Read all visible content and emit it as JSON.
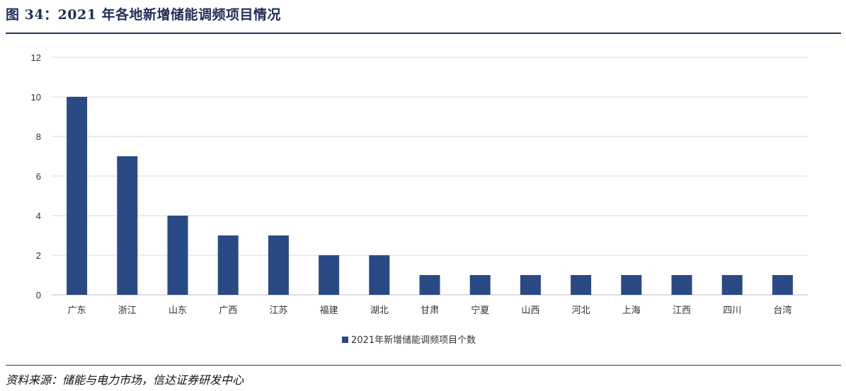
{
  "figure": {
    "title": "图 34：2021 年各地新增储能调频项目情况",
    "source": "资料来源：储能与电力市场，信达证券研发中心"
  },
  "chart_data": {
    "type": "bar",
    "categories": [
      "广东",
      "浙江",
      "山东",
      "广西",
      "江苏",
      "福建",
      "湖北",
      "甘肃",
      "宁夏",
      "山西",
      "河北",
      "上海",
      "江西",
      "四川",
      "台湾"
    ],
    "series": [
      {
        "name": "2021年新增储能调频项目个数",
        "values": [
          10,
          7,
          4,
          3,
          3,
          2,
          2,
          1,
          1,
          1,
          1,
          1,
          1,
          1,
          1
        ],
        "color": "#2a4a85"
      }
    ],
    "ylim": [
      0,
      12
    ],
    "yticks": [
      0,
      2,
      4,
      6,
      8,
      10,
      12
    ],
    "grid": true,
    "legend_position": "bottom",
    "xlabel": "",
    "ylabel": ""
  }
}
